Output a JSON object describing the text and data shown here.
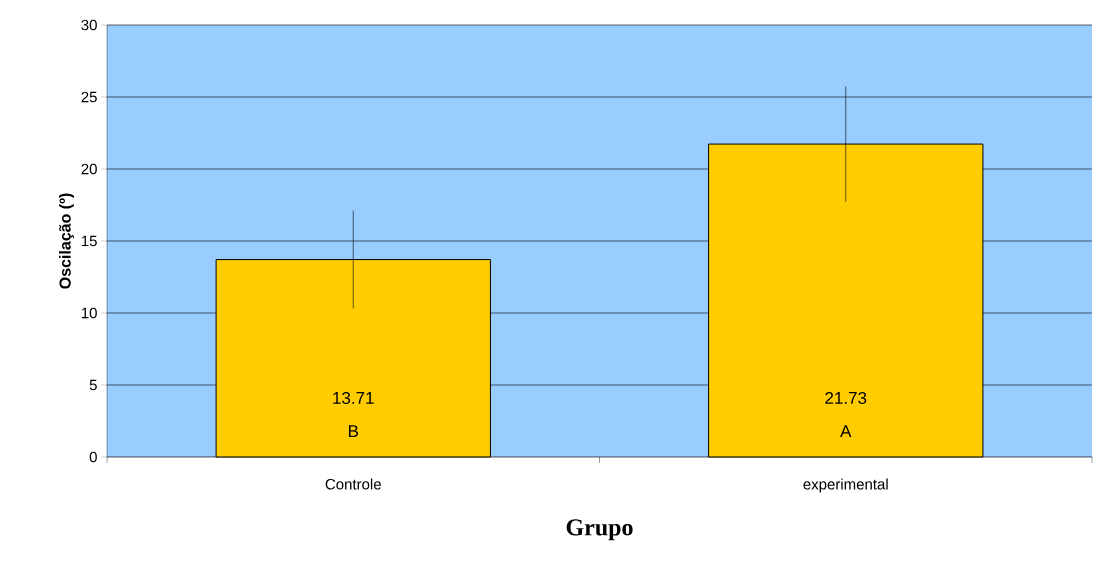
{
  "chart_data": {
    "type": "bar",
    "xlabel": "Grupo",
    "ylabel": "Oscilação (º)",
    "categories": [
      "Controle",
      "experimental"
    ],
    "values": [
      13.71,
      21.73
    ],
    "errors": [
      3.4,
      4.0
    ],
    "color": "#ffcc00",
    "data_labels": true,
    "annotations": [
      "B",
      "A"
    ],
    "ylim": [
      0,
      30
    ],
    "yticks": [
      0,
      5,
      10,
      15,
      20,
      25,
      30
    ],
    "grid": "y"
  }
}
